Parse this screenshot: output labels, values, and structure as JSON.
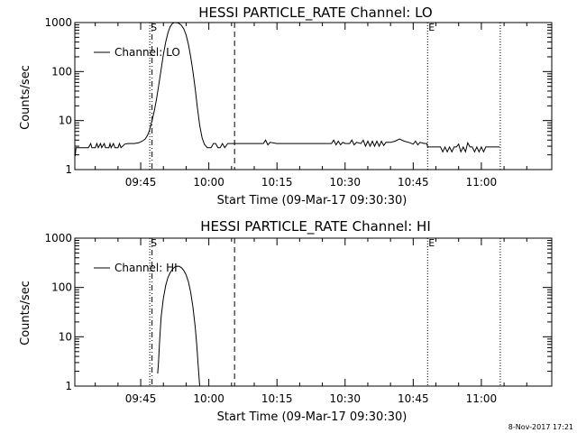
{
  "footer": {
    "timestamp": "8-Nov-2017 17:21"
  },
  "chart_data": [
    {
      "type": "line",
      "title": "HESSI PARTICLE_RATE Channel: LO",
      "xlabel": "Start Time (09-Mar-17 09:30:30)",
      "ylabel": "Counts/sec",
      "yscale": "log",
      "ylim": [
        1,
        1000
      ],
      "xlim": [
        "09:30:30",
        "11:15:30"
      ],
      "x_ticks": [
        "09:45",
        "10:00",
        "10:15",
        "10:30",
        "10:45",
        "11:00"
      ],
      "y_ticks": [
        "1",
        "10",
        "100",
        "1000"
      ],
      "legend": {
        "position": "top-left",
        "entries": [
          "Channel: LO"
        ]
      },
      "markers": [
        {
          "time": "09:47:00",
          "style": "dotted",
          "label": "S"
        },
        {
          "time": "09:47:30",
          "style": "dashdot",
          "label": ""
        },
        {
          "time": "10:05:40",
          "style": "dashed",
          "label": ""
        },
        {
          "time": "10:48:10",
          "style": "dotted",
          "label": "E"
        },
        {
          "time": "11:04:10",
          "style": "dotted",
          "label": ""
        }
      ],
      "series": [
        {
          "name": "Channel: LO",
          "points": [
            [
              "09:30:35",
              1.9
            ],
            [
              "09:30:45",
              2.8
            ],
            [
              "09:31:30",
              2.8
            ],
            [
              "09:32:30",
              2.8
            ],
            [
              "09:33:30",
              2.8
            ],
            [
              "09:34:00",
              3.4
            ],
            [
              "09:34:15",
              2.8
            ],
            [
              "09:35:00",
              2.8
            ],
            [
              "09:35:20",
              3.4
            ],
            [
              "09:35:40",
              2.8
            ],
            [
              "09:36:10",
              3.4
            ],
            [
              "09:36:25",
              2.8
            ],
            [
              "09:37:00",
              3.4
            ],
            [
              "09:37:15",
              2.8
            ],
            [
              "09:38:00",
              2.8
            ],
            [
              "09:38:15",
              3.4
            ],
            [
              "09:38:30",
              2.8
            ],
            [
              "09:39:00",
              3.4
            ],
            [
              "09:39:20",
              2.8
            ],
            [
              "09:40:00",
              2.8
            ],
            [
              "09:40:20",
              3.4
            ],
            [
              "09:40:40",
              2.8
            ],
            [
              "09:41:30",
              3.3
            ],
            [
              "09:42:10",
              3.4
            ],
            [
              "09:43:30",
              3.4
            ],
            [
              "09:44:30",
              3.5
            ],
            [
              "09:45:20",
              3.8
            ],
            [
              "09:46:00",
              4.2
            ],
            [
              "09:46:30",
              5.0
            ],
            [
              "09:47:00",
              6.5
            ],
            [
              "09:47:30",
              10
            ],
            [
              "09:48:00",
              16
            ],
            [
              "09:48:30",
              28
            ],
            [
              "09:49:00",
              55
            ],
            [
              "09:49:30",
              110
            ],
            [
              "09:50:00",
              220
            ],
            [
              "09:50:30",
              400
            ],
            [
              "09:51:00",
              620
            ],
            [
              "09:51:30",
              830
            ],
            [
              "09:52:00",
              960
            ],
            [
              "09:52:30",
              1000
            ],
            [
              "09:53:00",
              990
            ],
            [
              "09:53:30",
              950
            ],
            [
              "09:54:00",
              870
            ],
            [
              "09:54:30",
              740
            ],
            [
              "09:55:00",
              560
            ],
            [
              "09:55:30",
              360
            ],
            [
              "09:56:00",
              200
            ],
            [
              "09:56:30",
              100
            ],
            [
              "09:57:00",
              45
            ],
            [
              "09:57:30",
              18
            ],
            [
              "09:58:00",
              8
            ],
            [
              "09:58:30",
              4.5
            ],
            [
              "09:59:00",
              3.3
            ],
            [
              "09:59:40",
              2.8
            ],
            [
              "10:00:30",
              2.8
            ],
            [
              "10:01:00",
              3.4
            ],
            [
              "10:01:30",
              3.4
            ],
            [
              "10:02:00",
              2.8
            ],
            [
              "10:02:30",
              2.8
            ],
            [
              "10:03:00",
              3.4
            ],
            [
              "10:03:30",
              2.8
            ],
            [
              "10:04:10",
              3.4
            ],
            [
              "10:04:40",
              3.4
            ],
            [
              "10:08:00",
              3.4
            ],
            [
              "10:10:00",
              3.4
            ],
            [
              "10:12:00",
              3.4
            ],
            [
              "10:12:30",
              4.0
            ],
            [
              "10:13:00",
              3.2
            ],
            [
              "10:13:30",
              3.6
            ],
            [
              "10:15:00",
              3.4
            ],
            [
              "10:20:00",
              3.4
            ],
            [
              "10:25:00",
              3.4
            ],
            [
              "10:27:00",
              3.4
            ],
            [
              "10:27:30",
              4.0
            ],
            [
              "10:28:00",
              3.2
            ],
            [
              "10:28:30",
              3.8
            ],
            [
              "10:29:00",
              3.2
            ],
            [
              "10:29:30",
              3.6
            ],
            [
              "10:30:00",
              3.4
            ],
            [
              "10:31:00",
              3.4
            ],
            [
              "10:31:30",
              4.0
            ],
            [
              "10:32:00",
              3.2
            ],
            [
              "10:32:30",
              3.6
            ],
            [
              "10:33:30",
              3.4
            ],
            [
              "10:34:00",
              4.0
            ],
            [
              "10:34:30",
              3.0
            ],
            [
              "10:35:00",
              3.8
            ],
            [
              "10:35:30",
              3.0
            ],
            [
              "10:36:00",
              3.8
            ],
            [
              "10:36:30",
              3.0
            ],
            [
              "10:37:00",
              3.8
            ],
            [
              "10:37:30",
              3.0
            ],
            [
              "10:38:00",
              3.8
            ],
            [
              "10:38:30",
              3.1
            ],
            [
              "10:39:00",
              3.6
            ],
            [
              "10:40:00",
              3.6
            ],
            [
              "10:41:00",
              3.8
            ],
            [
              "10:42:00",
              4.2
            ],
            [
              "10:43:00",
              3.8
            ],
            [
              "10:44:00",
              3.6
            ],
            [
              "10:45:00",
              3.3
            ],
            [
              "10:45:30",
              3.8
            ],
            [
              "10:46:00",
              3.2
            ],
            [
              "10:46:30",
              3.6
            ],
            [
              "10:47:30",
              3.4
            ],
            [
              "10:48:00",
              3.4
            ],
            [
              "10:48:10",
              2.9
            ],
            [
              "10:50:00",
              2.9
            ],
            [
              "10:51:00",
              2.9
            ],
            [
              "10:51:30",
              2.3
            ],
            [
              "10:52:00",
              2.9
            ],
            [
              "10:52:30",
              2.3
            ],
            [
              "10:53:00",
              2.9
            ],
            [
              "10:53:30",
              2.3
            ],
            [
              "10:54:00",
              2.9
            ],
            [
              "10:54:30",
              2.9
            ],
            [
              "10:55:00",
              3.3
            ],
            [
              "10:55:30",
              2.3
            ],
            [
              "10:56:00",
              2.9
            ],
            [
              "10:56:30",
              2.3
            ],
            [
              "10:57:00",
              3.5
            ],
            [
              "10:57:30",
              2.9
            ],
            [
              "10:58:00",
              2.9
            ],
            [
              "10:58:30",
              2.3
            ],
            [
              "10:59:00",
              2.9
            ],
            [
              "10:59:30",
              2.3
            ],
            [
              "11:00:00",
              2.9
            ],
            [
              "11:00:30",
              2.3
            ],
            [
              "11:01:00",
              2.9
            ],
            [
              "11:02:00",
              2.9
            ],
            [
              "11:04:00",
              2.9
            ]
          ]
        }
      ]
    },
    {
      "type": "line",
      "title": "HESSI PARTICLE_RATE Channel: HI",
      "xlabel": "Start Time (09-Mar-17 09:30:30)",
      "ylabel": "Counts/sec",
      "yscale": "log",
      "ylim": [
        1,
        1000
      ],
      "xlim": [
        "09:30:30",
        "11:15:30"
      ],
      "x_ticks": [
        "09:45",
        "10:00",
        "10:15",
        "10:30",
        "10:45",
        "11:00"
      ],
      "y_ticks": [
        "1",
        "10",
        "100",
        "1000"
      ],
      "legend": {
        "position": "top-left",
        "entries": [
          "Channel: HI"
        ]
      },
      "markers": [
        {
          "time": "09:47:00",
          "style": "dotted",
          "label": "S"
        },
        {
          "time": "09:47:30",
          "style": "dashdot",
          "label": ""
        },
        {
          "time": "10:05:40",
          "style": "dashed",
          "label": ""
        },
        {
          "time": "10:48:10",
          "style": "dotted",
          "label": "E"
        },
        {
          "time": "11:04:10",
          "style": "dotted",
          "label": ""
        }
      ],
      "series": [
        {
          "name": "Channel: HI",
          "points": [
            [
              "09:48:45",
              1.8
            ],
            [
              "09:48:55",
              3.0
            ],
            [
              "09:49:10",
              8
            ],
            [
              "09:49:30",
              25
            ],
            [
              "09:50:00",
              60
            ],
            [
              "09:50:30",
              110
            ],
            [
              "09:51:00",
              160
            ],
            [
              "09:51:30",
              200
            ],
            [
              "09:52:00",
              235
            ],
            [
              "09:52:30",
              260
            ],
            [
              "09:53:00",
              270
            ],
            [
              "09:53:30",
              268
            ],
            [
              "09:54:00",
              250
            ],
            [
              "09:54:30",
              220
            ],
            [
              "09:55:00",
              180
            ],
            [
              "09:55:30",
              130
            ],
            [
              "09:56:00",
              80
            ],
            [
              "09:56:30",
              40
            ],
            [
              "09:57:00",
              16
            ],
            [
              "09:57:20",
              7
            ],
            [
              "09:57:40",
              2.5
            ],
            [
              "09:58:00",
              1.0
            ]
          ]
        }
      ]
    }
  ]
}
